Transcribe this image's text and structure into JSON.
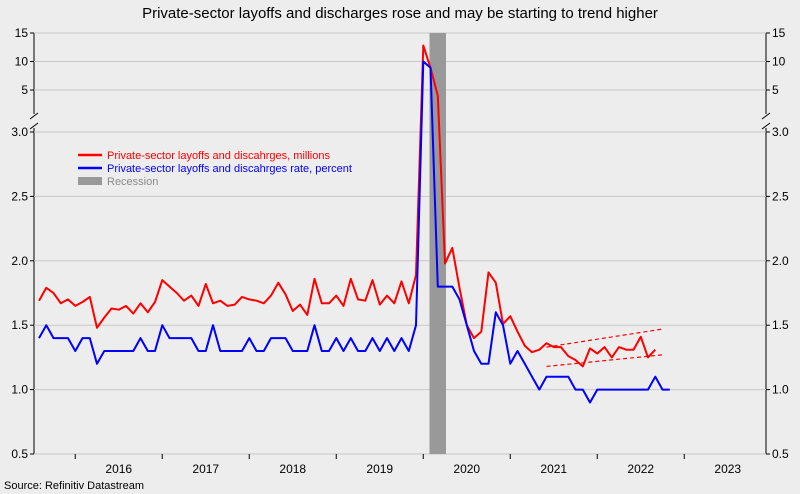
{
  "chart_data": {
    "type": "line",
    "title": "Private-sector layoffs and discharges rose and may be starting to trend higher",
    "source": "Source: Refinitiv Datastream",
    "x_labels": [
      "2016",
      "2017",
      "2018",
      "2019",
      "2020",
      "2021",
      "2022",
      "2023"
    ],
    "y_lower_ticks": [
      "0.5",
      "1.0",
      "1.5",
      "2.0",
      "2.5",
      "3.0"
    ],
    "y_upper_ticks": [
      "5",
      "10",
      "15"
    ],
    "ylim_lower": [
      0.5,
      3.0
    ],
    "ylim_upper": [
      1.5,
      15
    ],
    "grid": true,
    "legend_placement": "top-left",
    "legend": [
      {
        "label": "Private-sector layoffs and discahrges, millions",
        "color": "#ff0000"
      },
      {
        "label": "Private-sector layoffs and discahrges rate, percent",
        "color": "#0000ff"
      },
      {
        "label": "Recession",
        "color": "#999999"
      }
    ],
    "recession": {
      "start": "2020-02",
      "end": "2020-04"
    },
    "series": [
      {
        "name": "Private-sector layoffs and discahrges, millions",
        "color": "#ff0000",
        "start": "2015-08",
        "values": [
          1.69,
          1.79,
          1.75,
          1.67,
          1.7,
          1.65,
          1.68,
          1.72,
          1.48,
          1.56,
          1.63,
          1.62,
          1.65,
          1.59,
          1.67,
          1.6,
          1.68,
          1.85,
          1.8,
          1.75,
          1.69,
          1.73,
          1.65,
          1.82,
          1.67,
          1.69,
          1.65,
          1.66,
          1.72,
          1.7,
          1.69,
          1.67,
          1.73,
          1.83,
          1.74,
          1.61,
          1.66,
          1.58,
          1.86,
          1.67,
          1.67,
          1.73,
          1.65,
          1.86,
          1.7,
          1.69,
          1.85,
          1.66,
          1.73,
          1.67,
          1.84,
          1.67,
          1.89,
          12.8,
          8.9,
          4.0,
          1.98,
          2.1,
          1.79,
          1.5,
          1.4,
          1.45,
          1.91,
          1.83,
          1.51,
          1.57,
          1.45,
          1.34,
          1.29,
          1.31,
          1.36,
          1.33,
          1.33,
          1.26,
          1.23,
          1.18,
          1.32,
          1.28,
          1.33,
          1.25,
          1.33,
          1.31,
          1.31,
          1.41,
          1.25,
          1.31
        ]
      },
      {
        "name": "Private-sector layoffs and discahrges rate, percent",
        "color": "#0000ff",
        "start": "2015-08",
        "values": [
          1.4,
          1.5,
          1.4,
          1.4,
          1.4,
          1.3,
          1.4,
          1.4,
          1.2,
          1.3,
          1.3,
          1.3,
          1.3,
          1.3,
          1.4,
          1.3,
          1.3,
          1.5,
          1.4,
          1.4,
          1.4,
          1.4,
          1.3,
          1.3,
          1.5,
          1.3,
          1.3,
          1.3,
          1.3,
          1.4,
          1.3,
          1.3,
          1.4,
          1.4,
          1.4,
          1.3,
          1.3,
          1.3,
          1.5,
          1.3,
          1.3,
          1.4,
          1.3,
          1.4,
          1.3,
          1.3,
          1.4,
          1.3,
          1.4,
          1.3,
          1.4,
          1.3,
          1.5,
          10.0,
          8.9,
          1.8,
          1.8,
          1.8,
          1.7,
          1.5,
          1.3,
          1.2,
          1.2,
          1.6,
          1.5,
          1.2,
          1.3,
          1.2,
          1.1,
          1.0,
          1.1,
          1.1,
          1.1,
          1.1,
          1.0,
          1.0,
          0.9,
          1.0,
          1.0,
          1.0,
          1.0,
          1.0,
          1.0,
          1.0,
          1.0,
          1.1,
          1.0,
          1.0
        ]
      }
    ],
    "trend_channel": {
      "color": "#ff0000",
      "upper": {
        "x": [
          "2021-06",
          "2022-10"
        ],
        "y": [
          1.33,
          1.47
        ]
      },
      "lower": {
        "x": [
          "2021-06",
          "2022-10"
        ],
        "y": [
          1.18,
          1.27
        ]
      }
    }
  }
}
